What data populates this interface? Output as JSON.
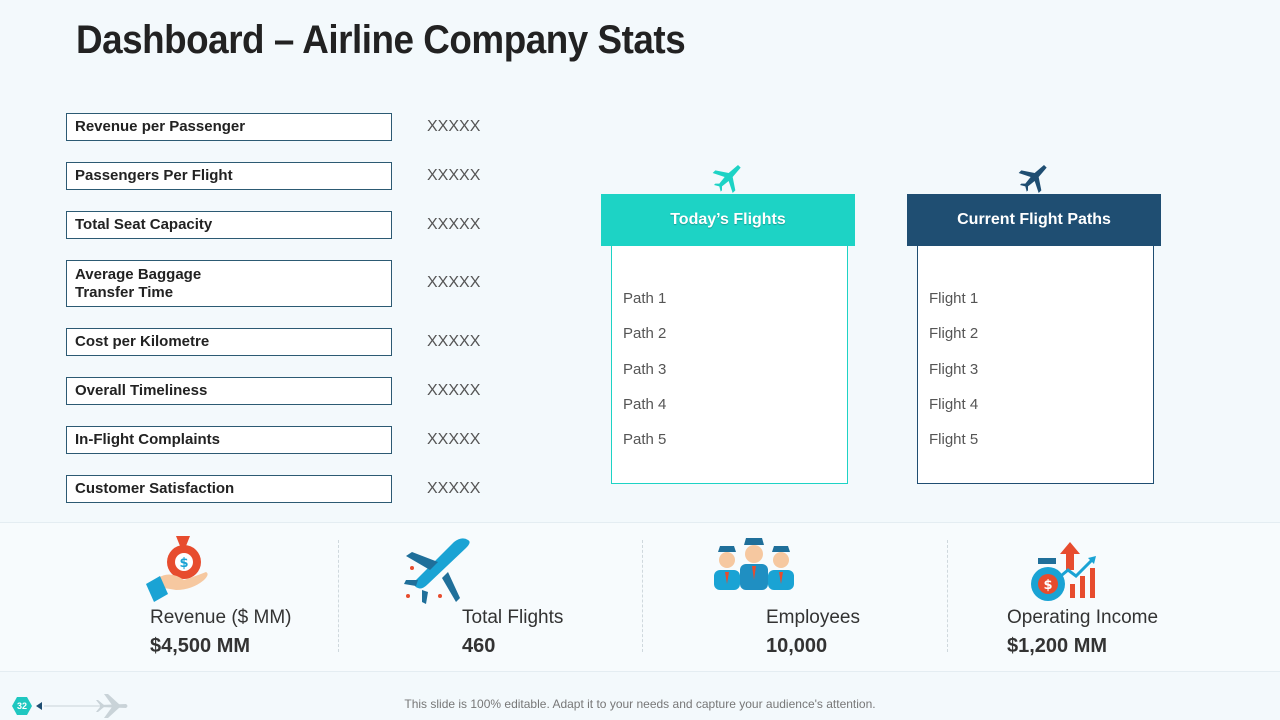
{
  "title": "Dashboard – Airline Company Stats",
  "metrics": [
    {
      "label": "Revenue per Passenger",
      "value": "XXXXX"
    },
    {
      "label": "Passengers Per Flight",
      "value": "XXXXX"
    },
    {
      "label": "Total Seat Capacity",
      "value": "XXXXX"
    },
    {
      "label": "Average Baggage\nTransfer Time",
      "value": "XXXXX"
    },
    {
      "label": "Cost per Kilometre",
      "value": "XXXXX"
    },
    {
      "label": "Overall Timeliness",
      "value": "XXXXX"
    },
    {
      "label": "In-Flight Complaints",
      "value": "XXXXX"
    },
    {
      "label": "Customer Satisfaction",
      "value": "XXXXX"
    }
  ],
  "todays_flights": {
    "header": "Today’s Flights",
    "accent": "#1dd3c5",
    "items": [
      "Path 1",
      "Path 2",
      "Path 3",
      "Path 4",
      "Path 5"
    ]
  },
  "current_paths": {
    "header": "Current Flight Paths",
    "accent": "#1f4e72",
    "items": [
      "Flight 1",
      "Flight 2",
      "Flight 3",
      "Flight 4",
      "Flight 5"
    ]
  },
  "stats": [
    {
      "label": "Revenue ($ MM)",
      "value": "$4,500 MM",
      "icon": "money-bag-hand-icon"
    },
    {
      "label": "Total Flights",
      "value": "460",
      "icon": "airplane-icon"
    },
    {
      "label": "Employees",
      "value": "10,000",
      "icon": "crew-icon"
    },
    {
      "label": "Operating Income",
      "value": "$1,200 MM",
      "icon": "income-growth-icon"
    }
  ],
  "footer": {
    "page_number": "32",
    "note": "This slide is 100% editable. Adapt it to your needs and capture your audience's attention."
  }
}
